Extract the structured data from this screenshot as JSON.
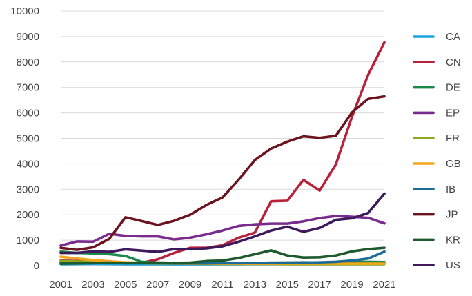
{
  "chart_data": {
    "type": "line",
    "title": "",
    "xlabel": "",
    "ylabel": "",
    "x": [
      2001,
      2002,
      2003,
      2004,
      2005,
      2006,
      2007,
      2008,
      2009,
      2010,
      2011,
      2012,
      2013,
      2014,
      2015,
      2016,
      2017,
      2018,
      2019,
      2020,
      2021
    ],
    "x_tick_labels": [
      "2001",
      "2003",
      "2005",
      "2007",
      "2009",
      "2011",
      "2013",
      "2015",
      "2017",
      "2019",
      "2021"
    ],
    "x_tick_values": [
      2001,
      2003,
      2005,
      2007,
      2009,
      2011,
      2013,
      2015,
      2017,
      2019,
      2021
    ],
    "xlim": [
      2001,
      2021
    ],
    "y_ticks": [
      0,
      1000,
      2000,
      3000,
      4000,
      5000,
      6000,
      7000,
      8000,
      9000,
      10000
    ],
    "y_tick_labels": [
      "0",
      "1000",
      "2000",
      "3000",
      "4000",
      "5000",
      "6000",
      "7000",
      "8000",
      "9000",
      "10000"
    ],
    "ylim": [
      0,
      10000
    ],
    "grid": "horizontal",
    "legend_position": "right",
    "series": [
      {
        "name": "CA",
        "color": "#1aa3dc",
        "values": [
          60,
          65,
          70,
          65,
          60,
          60,
          60,
          55,
          55,
          55,
          60,
          60,
          65,
          65,
          70,
          70,
          75,
          80,
          85,
          90,
          100
        ]
      },
      {
        "name": "CN",
        "color": "#b5223a",
        "values": [
          200,
          180,
          170,
          150,
          120,
          110,
          250,
          500,
          700,
          700,
          800,
          1100,
          1300,
          2530,
          2550,
          3370,
          2950,
          3970,
          5850,
          7500,
          8770
        ]
      },
      {
        "name": "DE",
        "color": "#1a8a4a",
        "values": [
          550,
          500,
          480,
          450,
          380,
          150,
          120,
          110,
          100,
          100,
          100,
          100,
          100,
          120,
          120,
          130,
          120,
          130,
          140,
          150,
          140
        ]
      },
      {
        "name": "EP",
        "color": "#7a2c8e",
        "values": [
          790,
          950,
          940,
          1250,
          1170,
          1150,
          1150,
          1030,
          1100,
          1230,
          1380,
          1560,
          1620,
          1650,
          1650,
          1740,
          1870,
          1950,
          1920,
          1880,
          1660
        ]
      },
      {
        "name": "FR",
        "color": "#8bab1c",
        "values": [
          180,
          160,
          150,
          140,
          120,
          100,
          90,
          80,
          80,
          70,
          70,
          70,
          70,
          70,
          60,
          60,
          60,
          60,
          60,
          60,
          60
        ]
      },
      {
        "name": "GB",
        "color": "#f2a71b",
        "values": [
          350,
          280,
          220,
          170,
          130,
          110,
          100,
          90,
          80,
          80,
          80,
          80,
          80,
          80,
          80,
          80,
          80,
          80,
          80,
          80,
          80
        ]
      },
      {
        "name": "IB",
        "color": "#1d6a96",
        "values": [
          100,
          110,
          110,
          120,
          100,
          100,
          100,
          90,
          90,
          90,
          100,
          100,
          110,
          110,
          120,
          120,
          130,
          150,
          200,
          280,
          550
        ]
      },
      {
        "name": "JP",
        "color": "#6b1420",
        "values": [
          700,
          620,
          720,
          1050,
          1900,
          1750,
          1600,
          1760,
          2000,
          2380,
          2680,
          3380,
          4150,
          4600,
          4870,
          5080,
          5020,
          5100,
          6020,
          6550,
          6650
        ]
      },
      {
        "name": "KR",
        "color": "#1d5a2e",
        "values": [
          80,
          90,
          100,
          110,
          100,
          120,
          120,
          110,
          120,
          180,
          200,
          300,
          450,
          600,
          400,
          320,
          330,
          400,
          560,
          650,
          700
        ]
      },
      {
        "name": "US",
        "color": "#3e1a5c",
        "values": [
          500,
          500,
          560,
          540,
          640,
          590,
          540,
          650,
          650,
          680,
          760,
          940,
          1150,
          1380,
          1530,
          1330,
          1480,
          1800,
          1860,
          2070,
          2830
        ]
      }
    ]
  }
}
